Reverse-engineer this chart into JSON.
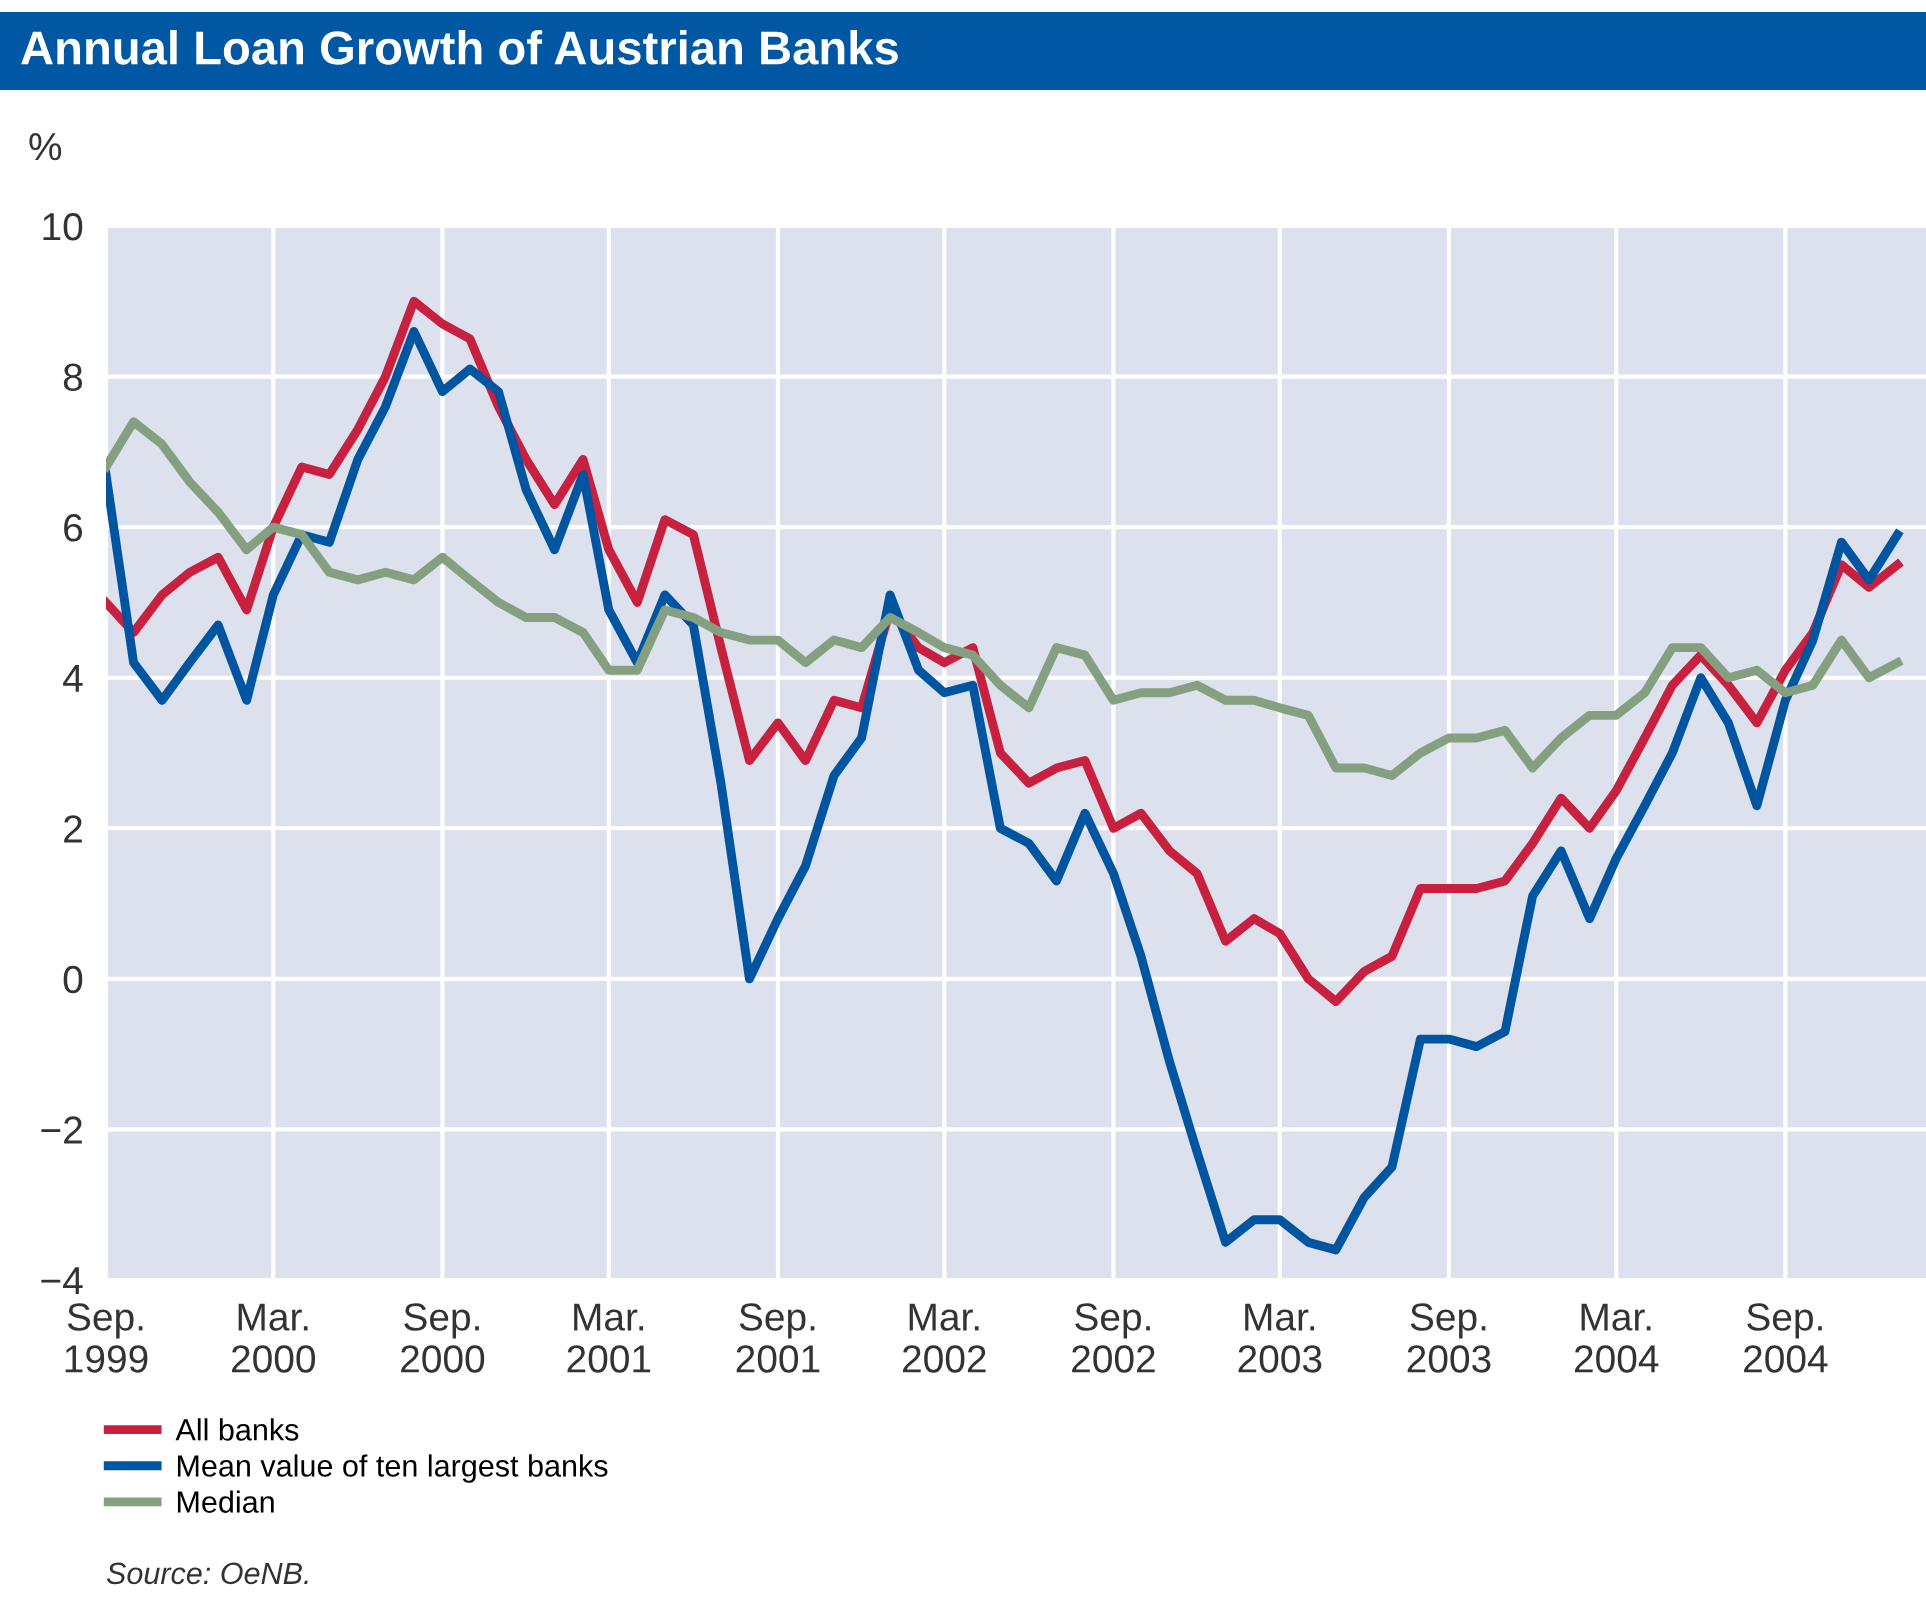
{
  "chart_data": {
    "type": "line",
    "title": "Annual Loan Growth of Austrian Banks",
    "ylabel": "%",
    "x": [
      "1999-09",
      "1999-10",
      "1999-11",
      "1999-12",
      "2000-01",
      "2000-02",
      "2000-03",
      "2000-04",
      "2000-05",
      "2000-06",
      "2000-07",
      "2000-08",
      "2000-09",
      "2000-10",
      "2000-11",
      "2000-12",
      "2001-01",
      "2001-02",
      "2001-03",
      "2001-04",
      "2001-05",
      "2001-06",
      "2001-07",
      "2001-08",
      "2001-09",
      "2001-10",
      "2001-11",
      "2001-12",
      "2002-01",
      "2002-02",
      "2002-03",
      "2002-04",
      "2002-05",
      "2002-06",
      "2002-07",
      "2002-08",
      "2002-09",
      "2002-10",
      "2002-11",
      "2002-12",
      "2003-01",
      "2003-02",
      "2003-03",
      "2003-04",
      "2003-05",
      "2003-06",
      "2003-07",
      "2003-08",
      "2003-09",
      "2003-10",
      "2003-11",
      "2003-12",
      "2004-01",
      "2004-02",
      "2004-03",
      "2004-04",
      "2004-05",
      "2004-06",
      "2004-07",
      "2004-08",
      "2004-09",
      "2004-10",
      "2004-11",
      "2004-12",
      "2005-01"
    ],
    "series": [
      {
        "name": "All banks",
        "color": "#c8203f",
        "values": [
          5.0,
          4.6,
          5.1,
          5.4,
          5.6,
          4.9,
          6.0,
          6.8,
          6.7,
          7.3,
          8.0,
          9.0,
          8.7,
          8.5,
          7.6,
          6.9,
          6.3,
          6.9,
          5.7,
          5.0,
          6.1,
          5.9,
          4.4,
          2.9,
          3.4,
          2.9,
          3.7,
          3.6,
          4.9,
          4.4,
          4.2,
          4.4,
          3.0,
          2.6,
          2.8,
          2.9,
          2.0,
          2.2,
          1.7,
          1.4,
          0.5,
          0.8,
          0.6,
          0.0,
          -0.3,
          0.1,
          0.3,
          1.2,
          1.2,
          1.2,
          1.3,
          1.8,
          2.4,
          2.0,
          2.5,
          3.2,
          3.9,
          4.3,
          3.9,
          3.4,
          4.1,
          4.6,
          5.5,
          5.2,
          5.5
        ]
      },
      {
        "name": "Mean value of ten largest banks",
        "color": "#0055a0",
        "values": [
          6.7,
          4.2,
          3.7,
          4.2,
          4.7,
          3.7,
          5.1,
          5.9,
          5.8,
          6.9,
          7.6,
          8.6,
          7.8,
          8.1,
          7.8,
          6.5,
          5.7,
          6.7,
          4.9,
          4.2,
          5.1,
          4.7,
          2.6,
          0.0,
          0.8,
          1.5,
          2.7,
          3.2,
          5.1,
          4.1,
          3.8,
          3.9,
          2.0,
          1.8,
          1.3,
          2.2,
          1.4,
          0.3,
          -1.1,
          -2.3,
          -3.5,
          -3.2,
          -3.2,
          -3.5,
          -3.6,
          -2.9,
          -2.5,
          -0.8,
          -0.8,
          -0.9,
          -0.7,
          1.1,
          1.7,
          0.8,
          1.6,
          2.3,
          3.0,
          4.0,
          3.4,
          2.3,
          3.7,
          4.5,
          5.8,
          5.3,
          5.9
        ]
      },
      {
        "name": "Median",
        "color": "#85a080",
        "values": [
          6.8,
          7.4,
          7.1,
          6.6,
          6.2,
          5.7,
          6.0,
          5.9,
          5.4,
          5.3,
          5.4,
          5.3,
          5.6,
          5.3,
          5.0,
          4.8,
          4.8,
          4.6,
          4.1,
          4.1,
          4.9,
          4.8,
          4.6,
          4.5,
          4.5,
          4.2,
          4.5,
          4.4,
          4.8,
          4.6,
          4.4,
          4.3,
          3.9,
          3.6,
          4.4,
          4.3,
          3.7,
          3.8,
          3.8,
          3.9,
          3.7,
          3.7,
          3.6,
          3.5,
          2.8,
          2.8,
          2.7,
          3.0,
          3.2,
          3.2,
          3.3,
          2.8,
          3.2,
          3.5,
          3.5,
          3.8,
          4.4,
          4.4,
          4.0,
          4.1,
          3.8,
          3.9,
          4.5,
          4.0,
          4.2
        ]
      }
    ],
    "xlim": [
      "1999-09",
      "2005-02"
    ],
    "xticks": [
      {
        "value": "1999-09",
        "label": "Sep.\n1999"
      },
      {
        "value": "2000-03",
        "label": "Mar.\n2000"
      },
      {
        "value": "2000-09",
        "label": "Sep.\n2000"
      },
      {
        "value": "2001-03",
        "label": "Mar.\n2001"
      },
      {
        "value": "2001-09",
        "label": "Sep.\n2001"
      },
      {
        "value": "2002-03",
        "label": "Mar.\n2002"
      },
      {
        "value": "2002-09",
        "label": "Sep.\n2002"
      },
      {
        "value": "2003-03",
        "label": "Mar.\n2003"
      },
      {
        "value": "2003-09",
        "label": "Sep.\n2003"
      },
      {
        "value": "2004-03",
        "label": "Mar.\n2004"
      },
      {
        "value": "2004-09",
        "label": "Sep.\n2004"
      }
    ],
    "ylim": [
      -4,
      10
    ],
    "yticks": [
      {
        "value": -4,
        "label": "−4"
      },
      {
        "value": -2,
        "label": "−2"
      },
      0,
      2,
      4,
      6,
      8,
      10
    ],
    "grid": true,
    "legend": "bottom left",
    "marker": "none",
    "line_style": "solid",
    "annotations": [
      "Source: OeNB."
    ]
  }
}
